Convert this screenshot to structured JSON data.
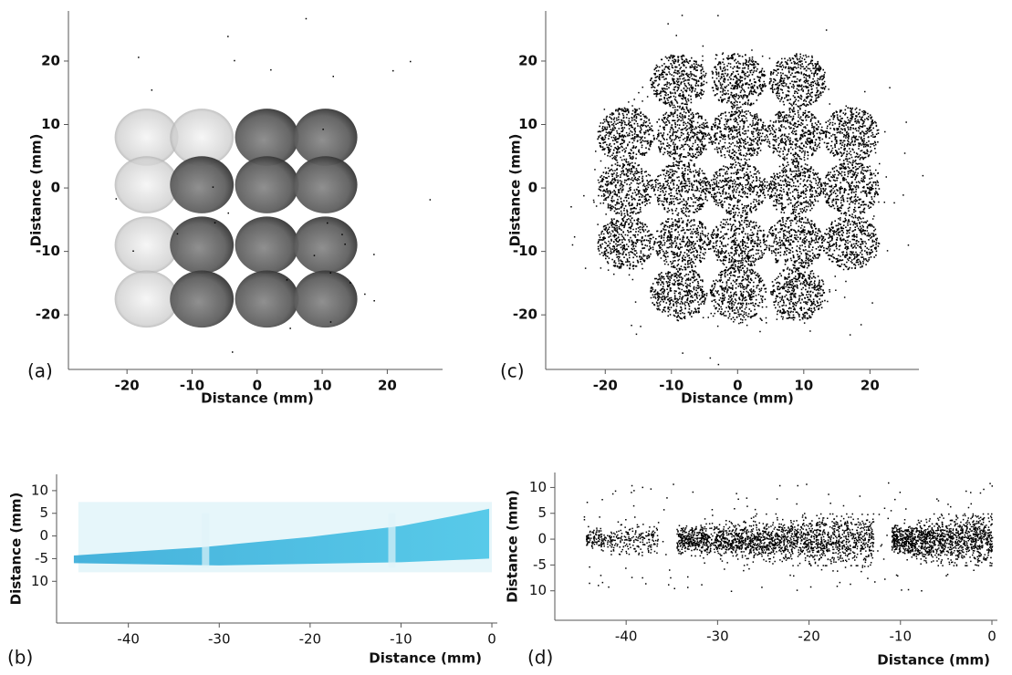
{
  "chart_data": [
    {
      "type": "image",
      "panel_label": "(a)",
      "xlabel": "Distance (mm)",
      "ylabel": "Distance (mm)",
      "xlim": [
        -29,
        28.5
      ],
      "ylim": [
        -28.6,
        27.9
      ],
      "xticks": [
        -20,
        -10,
        0,
        10,
        20
      ],
      "yticks": [
        -20,
        -10,
        0,
        10,
        20
      ]
    },
    {
      "type": "image",
      "panel_label": "(b)",
      "xlabel": "Distance (mm)",
      "ylabel": "Distance (mm)",
      "xlim": [
        -47.9,
        0.6
      ],
      "ylim": [
        -19.2,
        13.6
      ],
      "xticks": [
        -40,
        -30,
        -20,
        -10,
        0
      ],
      "yticks": [
        {
          "value": -10,
          "label": "10"
        },
        -5,
        0,
        5,
        10
      ]
    },
    {
      "type": "scatter",
      "panel_label": "(c)",
      "xlabel": "Distance (mm)",
      "ylabel": "Distance (mm)",
      "xlim": [
        -29,
        27.4
      ],
      "ylim": [
        -28.6,
        27.9
      ],
      "xticks": [
        -20,
        -10,
        0,
        10,
        20
      ],
      "yticks": [
        -20,
        -10,
        0,
        10,
        20
      ]
    },
    {
      "type": "scatter",
      "panel_label": "(d)",
      "xlabel": "Distance (mm)",
      "ylabel": "Distance (mm)",
      "xlim": [
        -47.8,
        0.6
      ],
      "ylim": [
        -15.7,
        12.9
      ],
      "xticks": [
        -40,
        -30,
        -20,
        -10,
        0
      ],
      "yticks": [
        {
          "value": -10,
          "label": "10"
        },
        -5,
        0,
        5,
        10
      ]
    }
  ]
}
